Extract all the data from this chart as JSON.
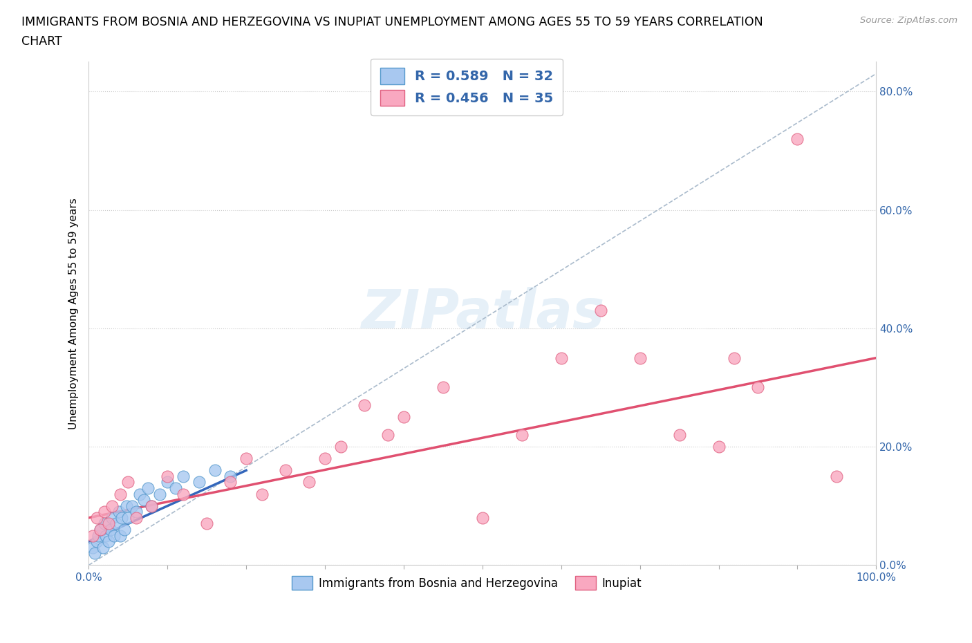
{
  "title_line1": "IMMIGRANTS FROM BOSNIA AND HERZEGOVINA VS INUPIAT UNEMPLOYMENT AMONG AGES 55 TO 59 YEARS CORRELATION",
  "title_line2": "CHART",
  "source": "Source: ZipAtlas.com",
  "ylabel": "Unemployment Among Ages 55 to 59 years",
  "legend1_label": "R = 0.589   N = 32",
  "legend2_label": "R = 0.456   N = 35",
  "xlim": [
    0.0,
    1.0
  ],
  "ylim": [
    0.0,
    0.85
  ],
  "yticks": [
    0.0,
    0.2,
    0.4,
    0.6,
    0.8
  ],
  "color_blue": "#a8c8f0",
  "color_blue_edge": "#5599cc",
  "color_pink": "#f9a8c0",
  "color_pink_edge": "#e06080",
  "color_blue_trend": "#3366bb",
  "color_pink_trend": "#e05070",
  "color_dashed": "#aabbcc",
  "blue_scatter_x": [
    0.005,
    0.008,
    0.01,
    0.012,
    0.015,
    0.018,
    0.02,
    0.022,
    0.025,
    0.028,
    0.03,
    0.032,
    0.035,
    0.038,
    0.04,
    0.042,
    0.045,
    0.048,
    0.05,
    0.055,
    0.06,
    0.065,
    0.07,
    0.075,
    0.08,
    0.09,
    0.1,
    0.11,
    0.12,
    0.14,
    0.16,
    0.18
  ],
  "blue_scatter_y": [
    0.03,
    0.02,
    0.04,
    0.05,
    0.06,
    0.03,
    0.07,
    0.05,
    0.04,
    0.06,
    0.08,
    0.05,
    0.07,
    0.09,
    0.05,
    0.08,
    0.06,
    0.1,
    0.08,
    0.1,
    0.09,
    0.12,
    0.11,
    0.13,
    0.1,
    0.12,
    0.14,
    0.13,
    0.15,
    0.14,
    0.16,
    0.15
  ],
  "pink_scatter_x": [
    0.005,
    0.01,
    0.015,
    0.02,
    0.025,
    0.03,
    0.04,
    0.05,
    0.06,
    0.08,
    0.1,
    0.12,
    0.15,
    0.18,
    0.2,
    0.22,
    0.25,
    0.28,
    0.3,
    0.32,
    0.35,
    0.38,
    0.4,
    0.45,
    0.5,
    0.55,
    0.6,
    0.65,
    0.7,
    0.75,
    0.8,
    0.82,
    0.85,
    0.9,
    0.95
  ],
  "pink_scatter_y": [
    0.05,
    0.08,
    0.06,
    0.09,
    0.07,
    0.1,
    0.12,
    0.14,
    0.08,
    0.1,
    0.15,
    0.12,
    0.07,
    0.14,
    0.18,
    0.12,
    0.16,
    0.14,
    0.18,
    0.2,
    0.27,
    0.22,
    0.25,
    0.3,
    0.08,
    0.22,
    0.35,
    0.43,
    0.35,
    0.22,
    0.2,
    0.35,
    0.3,
    0.72,
    0.15
  ],
  "blue_trend_x": [
    0.0,
    0.2
  ],
  "blue_trend_y": [
    0.04,
    0.16
  ],
  "pink_trend_x": [
    0.0,
    1.0
  ],
  "pink_trend_y": [
    0.08,
    0.35
  ],
  "dash_trend_x": [
    0.0,
    1.0
  ],
  "dash_trend_y": [
    0.0,
    0.83
  ]
}
